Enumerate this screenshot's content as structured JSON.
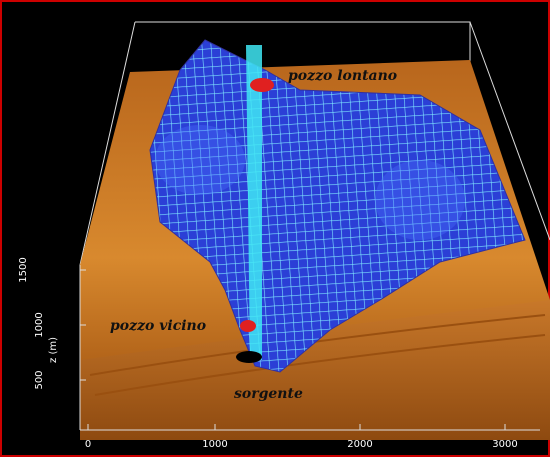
{
  "labels": {
    "far_well": "pozzo lontano",
    "near_well": "pozzo vicino",
    "source": "sorgente"
  },
  "x_axis": {
    "tick_labels": [
      "0",
      "1000",
      "2000",
      "3000"
    ]
  },
  "z_axis": {
    "title": "z (m)",
    "tick_labels": [
      "500",
      "1000",
      "1500"
    ]
  }
}
